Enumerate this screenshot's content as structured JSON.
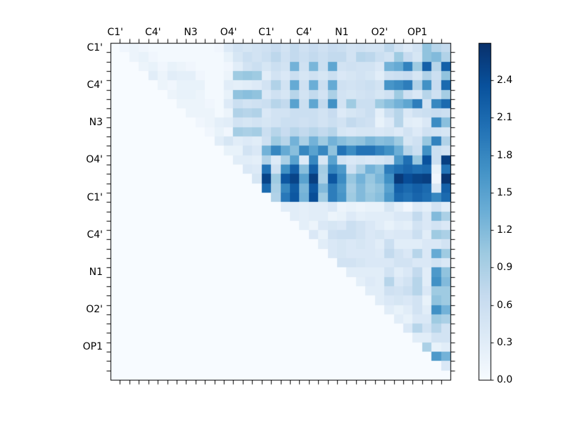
{
  "figure": {
    "background": "#ffffff",
    "text_color": "#000000"
  },
  "chart_data": {
    "type": "heatmap",
    "title": "",
    "xlabel": "",
    "ylabel": "",
    "n_cells": 36,
    "group_size": 4,
    "x_group_labels": [
      "C1'",
      "C4'",
      "N3",
      "O4'",
      "C1'",
      "C4'",
      "N1",
      "O2'",
      "OP1"
    ],
    "y_group_labels": [
      "C1'",
      "C4'",
      "N3",
      "O4'",
      "C1'",
      "C4'",
      "N1",
      "O2'",
      "OP1"
    ],
    "vmin": 0.0,
    "vmax": 2.7,
    "colormap": "Blues",
    "colormap_stops": [
      [
        247,
        251,
        255
      ],
      [
        222,
        235,
        247
      ],
      [
        198,
        219,
        239
      ],
      [
        158,
        202,
        225
      ],
      [
        107,
        174,
        214
      ],
      [
        66,
        146,
        198
      ],
      [
        33,
        113,
        181
      ],
      [
        8,
        81,
        156
      ],
      [
        8,
        48,
        107
      ]
    ],
    "colorbar_tick_labels": [
      "0.0",
      "0.3",
      "0.6",
      "0.9",
      "1.2",
      "1.5",
      "1.8",
      "2.1",
      "2.4"
    ],
    "colorbar_tick_values": [
      0.0,
      0.3,
      0.6,
      0.9,
      1.2,
      1.5,
      1.8,
      2.1,
      2.4
    ],
    "matrix": [
      [
        0,
        0.1,
        0.15,
        0.1,
        0.05,
        0.05,
        0.05,
        0.05,
        0.05,
        0.05,
        0.05,
        0.1,
        0.35,
        0.5,
        0.45,
        0.5,
        0.55,
        0.65,
        0.5,
        0.7,
        0.55,
        0.65,
        0.55,
        0.65,
        0.6,
        0.5,
        0.55,
        0.5,
        0.5,
        0.75,
        0.5,
        0.35,
        0.5,
        1.1,
        0.8,
        0.7
      ],
      [
        0,
        0,
        0.15,
        0.2,
        0.1,
        0.05,
        0.05,
        0.05,
        0.05,
        0.05,
        0.05,
        0.05,
        0.2,
        0.45,
        0.6,
        0.5,
        0.6,
        0.75,
        0.55,
        0.7,
        0.6,
        0.7,
        0.6,
        0.7,
        0.7,
        0.5,
        0.8,
        0.75,
        0.6,
        0.5,
        1.0,
        0.65,
        0.45,
        1.1,
        1.2,
        0.85
      ],
      [
        0,
        0,
        0,
        0.15,
        0.2,
        0.1,
        0.2,
        0.15,
        0.1,
        0.05,
        0.05,
        0.05,
        0.1,
        0.3,
        0.5,
        0.6,
        0.45,
        0.6,
        0.5,
        1.3,
        0.55,
        1.25,
        0.6,
        1.45,
        0.5,
        0.55,
        0.5,
        0.5,
        0.4,
        1.3,
        1.4,
        1.85,
        1.0,
        2.2,
        0.8,
        2.2
      ],
      [
        0,
        0,
        0,
        0,
        0.3,
        0.15,
        0.3,
        0.25,
        0.25,
        0.1,
        0.05,
        0.05,
        0.15,
        1.0,
        1.05,
        1.0,
        0.3,
        0.5,
        0.4,
        0.6,
        0.45,
        0.55,
        0.45,
        0.6,
        0.4,
        0.45,
        0.5,
        0.45,
        0.3,
        0.55,
        0.6,
        0.65,
        0.45,
        0.85,
        0.6,
        1.1
      ],
      [
        0,
        0,
        0,
        0,
        0,
        0.15,
        0.1,
        0.2,
        0.2,
        0.2,
        0.05,
        0.05,
        0.3,
        0.25,
        0.3,
        0.35,
        0.5,
        0.85,
        0.5,
        1.4,
        0.55,
        1.35,
        0.6,
        1.4,
        0.55,
        0.5,
        0.55,
        0.6,
        0.5,
        1.65,
        1.75,
        1.9,
        0.85,
        1.7,
        0.65,
        2.1
      ],
      [
        0,
        0,
        0,
        0,
        0,
        0,
        0.15,
        0.2,
        0.2,
        0.15,
        0.05,
        0.05,
        0.2,
        1.1,
        1.15,
        1.1,
        0.4,
        0.55,
        0.45,
        0.8,
        0.5,
        0.7,
        0.5,
        0.9,
        0.5,
        0.45,
        0.5,
        0.55,
        0.45,
        0.55,
        1.0,
        0.55,
        0.4,
        0.8,
        0.55,
        0.95
      ],
      [
        0,
        0,
        0,
        0,
        0,
        0,
        0,
        0.15,
        0.15,
        0.15,
        0.1,
        0.05,
        0.35,
        0.6,
        0.5,
        0.55,
        0.6,
        0.8,
        0.7,
        1.5,
        0.6,
        1.45,
        0.7,
        1.7,
        0.5,
        1.0,
        0.6,
        0.6,
        1.0,
        1.15,
        1.3,
        1.45,
        1.9,
        0.5,
        1.8,
        2.1
      ],
      [
        0,
        0,
        0,
        0,
        0,
        0,
        0,
        0,
        0.15,
        0.15,
        0.15,
        0.05,
        0.15,
        0.85,
        0.8,
        0.85,
        0.4,
        0.5,
        0.5,
        0.6,
        0.6,
        0.6,
        0.5,
        0.65,
        0.35,
        0.45,
        0.5,
        0.6,
        0.25,
        0.6,
        0.8,
        0.4,
        0.55,
        0.6,
        0.65,
        0.6
      ],
      [
        0,
        0,
        0,
        0,
        0,
        0,
        0,
        0,
        0,
        0.1,
        0.15,
        0.25,
        0.3,
        0.5,
        0.45,
        0.5,
        0.45,
        0.5,
        0.6,
        0.6,
        0.55,
        0.6,
        0.5,
        0.6,
        0.5,
        0.7,
        0.6,
        0.55,
        0.2,
        0.35,
        0.8,
        0.3,
        0.25,
        0.4,
        1.75,
        1.15
      ],
      [
        0,
        0,
        0,
        0,
        0,
        0,
        0,
        0,
        0,
        0,
        0.1,
        0.2,
        0.1,
        0.95,
        0.9,
        0.95,
        0.6,
        0.8,
        0.65,
        0.8,
        0.7,
        0.8,
        0.7,
        0.8,
        0.45,
        0.4,
        0.45,
        0.45,
        0.4,
        0.45,
        0.35,
        0.5,
        0.35,
        0.55,
        0.5,
        0.45
      ],
      [
        0,
        0,
        0,
        0,
        0,
        0,
        0,
        0,
        0,
        0,
        0,
        0.3,
        0.45,
        0.3,
        0.35,
        0.3,
        0.55,
        1.0,
        0.8,
        1.3,
        0.9,
        1.3,
        1.0,
        1.3,
        1.15,
        1.05,
        1.1,
        1.25,
        1.15,
        1.2,
        1.0,
        0.45,
        0.55,
        1.05,
        1.85,
        0.85
      ],
      [
        0,
        0,
        0,
        0,
        0,
        0,
        0,
        0,
        0,
        0,
        0,
        0,
        0.2,
        0.2,
        0.5,
        0.4,
        1.3,
        1.8,
        1.4,
        1.15,
        1.8,
        1.5,
        1.8,
        1.1,
        2.0,
        1.75,
        2.0,
        2.0,
        1.85,
        1.7,
        1.35,
        0.8,
        0.6,
        1.7,
        0.6,
        0.5
      ],
      [
        0,
        0,
        0,
        0,
        0,
        0,
        0,
        0,
        0,
        0,
        0,
        0,
        0,
        0.3,
        0.3,
        0.25,
        0.85,
        0.35,
        0.9,
        1.5,
        0.35,
        1.8,
        0.45,
        1.5,
        0.5,
        0.4,
        0.45,
        0.4,
        0.45,
        0.55,
        1.6,
        2.05,
        1.05,
        2.35,
        0.6,
        2.55
      ],
      [
        0,
        0,
        0,
        0,
        0,
        0,
        0,
        0,
        0,
        0,
        0,
        0,
        0,
        0,
        0.4,
        0.35,
        2.0,
        0.55,
        1.7,
        2.2,
        1.15,
        2.2,
        0.95,
        1.8,
        1.6,
        0.55,
        0.9,
        1.3,
        1.15,
        1.9,
        2.05,
        2.15,
        2.05,
        2.1,
        0.2,
        2.0
      ],
      [
        0,
        0,
        0,
        0,
        0,
        0,
        0,
        0,
        0,
        0,
        0,
        0,
        0,
        0,
        0,
        0.45,
        2.5,
        1.0,
        2.3,
        2.5,
        1.5,
        2.55,
        0.9,
        2.3,
        1.75,
        1.05,
        1.3,
        1.05,
        1.25,
        1.7,
        2.6,
        2.4,
        2.5,
        2.55,
        0.1,
        2.65
      ],
      [
        0,
        0,
        0,
        0,
        0,
        0,
        0,
        0,
        0,
        0,
        0,
        0,
        0,
        0,
        0,
        0,
        2.1,
        0.9,
        1.8,
        2.25,
        1.25,
        2.3,
        1.2,
        1.9,
        1.6,
        0.95,
        1.2,
        1.0,
        1.1,
        1.5,
        2.2,
        2.1,
        2.2,
        2.1,
        0.4,
        2.2
      ],
      [
        0,
        0,
        0,
        0,
        0,
        0,
        0,
        0,
        0,
        0,
        0,
        0,
        0,
        0,
        0,
        0,
        0,
        0.85,
        1.95,
        2.3,
        1.3,
        2.4,
        1.0,
        1.9,
        1.65,
        1.0,
        1.2,
        1.05,
        1.15,
        1.6,
        2.1,
        2.0,
        2.15,
        2.05,
        1.8,
        2.1
      ],
      [
        0,
        0,
        0,
        0,
        0,
        0,
        0,
        0,
        0,
        0,
        0,
        0,
        0,
        0,
        0,
        0,
        0,
        0,
        0.3,
        0.3,
        0.25,
        0.3,
        0.3,
        0.4,
        0.15,
        0.2,
        0.15,
        0.2,
        0.2,
        0.45,
        0.25,
        0.1,
        0.35,
        0.25,
        0.5,
        0.3
      ],
      [
        0,
        0,
        0,
        0,
        0,
        0,
        0,
        0,
        0,
        0,
        0,
        0,
        0,
        0,
        0,
        0,
        0,
        0,
        0,
        0.3,
        0.25,
        0.3,
        0.3,
        0.15,
        0.2,
        0.35,
        0.25,
        0.3,
        0.3,
        0.3,
        0.4,
        0.4,
        0.7,
        0.4,
        1.2,
        0.9
      ],
      [
        0,
        0,
        0,
        0,
        0,
        0,
        0,
        0,
        0,
        0,
        0,
        0,
        0,
        0,
        0,
        0,
        0,
        0,
        0,
        0,
        0.25,
        0.15,
        0.4,
        0.45,
        0.4,
        0.6,
        0.5,
        0.4,
        0.3,
        0.2,
        0.3,
        0.25,
        0.5,
        0.4,
        0.5,
        0.4
      ],
      [
        0,
        0,
        0,
        0,
        0,
        0,
        0,
        0,
        0,
        0,
        0,
        0,
        0,
        0,
        0,
        0,
        0,
        0,
        0,
        0,
        0,
        0.4,
        0.2,
        0.55,
        0.6,
        0.6,
        0.5,
        0.4,
        0.45,
        0.35,
        0.4,
        0.4,
        0.6,
        0.3,
        1.0,
        0.9
      ],
      [
        0,
        0,
        0,
        0,
        0,
        0,
        0,
        0,
        0,
        0,
        0,
        0,
        0,
        0,
        0,
        0,
        0,
        0,
        0,
        0,
        0,
        0,
        0.3,
        0.4,
        0.45,
        0.4,
        0.45,
        0.4,
        0.3,
        0.6,
        0.3,
        0.3,
        0.3,
        0.4,
        0.4,
        0.5
      ],
      [
        0,
        0,
        0,
        0,
        0,
        0,
        0,
        0,
        0,
        0,
        0,
        0,
        0,
        0,
        0,
        0,
        0,
        0,
        0,
        0,
        0,
        0,
        0,
        0.4,
        0.45,
        0.4,
        0.4,
        0.4,
        0.35,
        0.7,
        0.5,
        0.4,
        0.8,
        0.4,
        1.4,
        1.0
      ],
      [
        0,
        0,
        0,
        0,
        0,
        0,
        0,
        0,
        0,
        0,
        0,
        0,
        0,
        0,
        0,
        0,
        0,
        0,
        0,
        0,
        0,
        0,
        0,
        0,
        0.5,
        0.5,
        0.45,
        0.4,
        0.4,
        0.4,
        0.5,
        0.5,
        0.4,
        0.4,
        0.5,
        0.4
      ],
      [
        0,
        0,
        0,
        0,
        0,
        0,
        0,
        0,
        0,
        0,
        0,
        0,
        0,
        0,
        0,
        0,
        0,
        0,
        0,
        0,
        0,
        0,
        0,
        0,
        0,
        0.3,
        0.3,
        0.3,
        0.3,
        0.5,
        0.3,
        0.4,
        0.7,
        0.3,
        1.6,
        1.1
      ],
      [
        0,
        0,
        0,
        0,
        0,
        0,
        0,
        0,
        0,
        0,
        0,
        0,
        0,
        0,
        0,
        0,
        0,
        0,
        0,
        0,
        0,
        0,
        0,
        0,
        0,
        0,
        0.25,
        0.35,
        0.3,
        0.8,
        0.4,
        0.5,
        0.8,
        0.3,
        1.7,
        1.2
      ],
      [
        0,
        0,
        0,
        0,
        0,
        0,
        0,
        0,
        0,
        0,
        0,
        0,
        0,
        0,
        0,
        0,
        0,
        0,
        0,
        0,
        0,
        0,
        0,
        0,
        0,
        0,
        0,
        0.3,
        0.3,
        0.55,
        0.5,
        0.6,
        0.8,
        0.4,
        1.0,
        1.0
      ],
      [
        0,
        0,
        0,
        0,
        0,
        0,
        0,
        0,
        0,
        0,
        0,
        0,
        0,
        0,
        0,
        0,
        0,
        0,
        0,
        0,
        0,
        0,
        0,
        0,
        0,
        0,
        0,
        0,
        0.3,
        0.4,
        0.45,
        0.4,
        0.5,
        0.2,
        1.1,
        1.0
      ],
      [
        0,
        0,
        0,
        0,
        0,
        0,
        0,
        0,
        0,
        0,
        0,
        0,
        0,
        0,
        0,
        0,
        0,
        0,
        0,
        0,
        0,
        0,
        0,
        0,
        0,
        0,
        0,
        0,
        0,
        0.3,
        0.2,
        0.3,
        0.5,
        0.3,
        1.7,
        1.3
      ],
      [
        0,
        0,
        0,
        0,
        0,
        0,
        0,
        0,
        0,
        0,
        0,
        0,
        0,
        0,
        0,
        0,
        0,
        0,
        0,
        0,
        0,
        0,
        0,
        0,
        0,
        0,
        0,
        0,
        0,
        0,
        0.3,
        0.2,
        0.4,
        0.4,
        1.0,
        0.9
      ],
      [
        0,
        0,
        0,
        0,
        0,
        0,
        0,
        0,
        0,
        0,
        0,
        0,
        0,
        0,
        0,
        0,
        0,
        0,
        0,
        0,
        0,
        0,
        0,
        0,
        0,
        0,
        0,
        0,
        0,
        0,
        0,
        0.4,
        0.8,
        0.5,
        0.8,
        0.5
      ],
      [
        0,
        0,
        0,
        0,
        0,
        0,
        0,
        0,
        0,
        0,
        0,
        0,
        0,
        0,
        0,
        0,
        0,
        0,
        0,
        0,
        0,
        0,
        0,
        0,
        0,
        0,
        0,
        0,
        0,
        0,
        0,
        0,
        0.3,
        0.3,
        0.5,
        0.5
      ],
      [
        0,
        0,
        0,
        0,
        0,
        0,
        0,
        0,
        0,
        0,
        0,
        0,
        0,
        0,
        0,
        0,
        0,
        0,
        0,
        0,
        0,
        0,
        0,
        0,
        0,
        0,
        0,
        0,
        0,
        0,
        0,
        0,
        0,
        0.9,
        0.2,
        0.3
      ],
      [
        0,
        0,
        0,
        0,
        0,
        0,
        0,
        0,
        0,
        0,
        0,
        0,
        0,
        0,
        0,
        0,
        0,
        0,
        0,
        0,
        0,
        0,
        0,
        0,
        0,
        0,
        0,
        0,
        0,
        0,
        0,
        0,
        0,
        0,
        1.6,
        1.3
      ],
      [
        0,
        0,
        0,
        0,
        0,
        0,
        0,
        0,
        0,
        0,
        0,
        0,
        0,
        0,
        0,
        0,
        0,
        0,
        0,
        0,
        0,
        0,
        0,
        0,
        0,
        0,
        0,
        0,
        0,
        0,
        0,
        0,
        0,
        0,
        0,
        0.4
      ],
      [
        0,
        0,
        0,
        0,
        0,
        0,
        0,
        0,
        0,
        0,
        0,
        0,
        0,
        0,
        0,
        0,
        0,
        0,
        0,
        0,
        0,
        0,
        0,
        0,
        0,
        0,
        0,
        0,
        0,
        0,
        0,
        0,
        0,
        0,
        0,
        0
      ]
    ]
  }
}
